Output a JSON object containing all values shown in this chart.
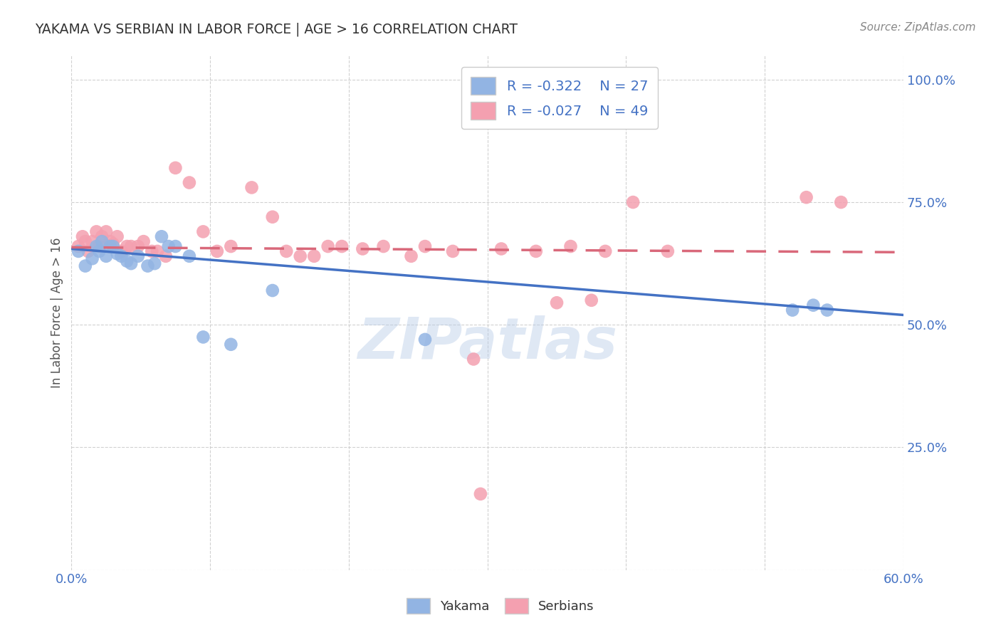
{
  "title": "YAKAMA VS SERBIAN IN LABOR FORCE | AGE > 16 CORRELATION CHART",
  "source": "Source: ZipAtlas.com",
  "ylabel_label": "In Labor Force | Age > 16",
  "x_min": 0.0,
  "x_max": 0.6,
  "y_min": 0.0,
  "y_max": 1.05,
  "x_ticks": [
    0.0,
    0.1,
    0.2,
    0.3,
    0.4,
    0.5,
    0.6
  ],
  "x_tick_labels": [
    "0.0%",
    "",
    "",
    "",
    "",
    "",
    "60.0%"
  ],
  "y_ticks": [
    0.0,
    0.25,
    0.5,
    0.75,
    1.0
  ],
  "y_tick_labels": [
    "",
    "25.0%",
    "50.0%",
    "75.0%",
    "100.0%"
  ],
  "yakama_color": "#92b4e3",
  "serbian_color": "#f4a0b0",
  "yakama_line_color": "#4472c4",
  "serbian_line_color": "#d9687a",
  "background_color": "#ffffff",
  "grid_color": "#cccccc",
  "legend_R_yakama": "R = -0.322",
  "legend_N_yakama": "N = 27",
  "legend_R_serbian": "R = -0.027",
  "legend_N_serbian": "N = 49",
  "watermark": "ZIPatlas",
  "title_color": "#333333",
  "axis_label_color": "#555555",
  "tick_label_color": "#4472c4",
  "source_color": "#888888",
  "yakama_x": [
    0.005,
    0.01,
    0.015,
    0.018,
    0.02,
    0.022,
    0.025,
    0.028,
    0.03,
    0.033,
    0.036,
    0.04,
    0.043,
    0.048,
    0.055,
    0.06,
    0.065,
    0.07,
    0.075,
    0.085,
    0.095,
    0.115,
    0.145,
    0.255,
    0.52,
    0.535,
    0.545
  ],
  "yakama_y": [
    0.65,
    0.62,
    0.635,
    0.66,
    0.65,
    0.67,
    0.64,
    0.66,
    0.66,
    0.645,
    0.64,
    0.63,
    0.625,
    0.64,
    0.62,
    0.625,
    0.68,
    0.66,
    0.66,
    0.64,
    0.475,
    0.46,
    0.57,
    0.47,
    0.53,
    0.54,
    0.53
  ],
  "serbian_x": [
    0.005,
    0.008,
    0.01,
    0.012,
    0.015,
    0.018,
    0.02,
    0.022,
    0.025,
    0.028,
    0.03,
    0.033,
    0.036,
    0.04,
    0.043,
    0.048,
    0.052,
    0.058,
    0.062,
    0.068,
    0.075,
    0.085,
    0.095,
    0.105,
    0.115,
    0.13,
    0.145,
    0.155,
    0.165,
    0.175,
    0.185,
    0.195,
    0.21,
    0.225,
    0.245,
    0.275,
    0.29,
    0.31,
    0.35,
    0.375,
    0.405,
    0.43,
    0.255,
    0.335,
    0.36,
    0.385,
    0.53,
    0.555,
    0.295
  ],
  "serbian_y": [
    0.66,
    0.68,
    0.67,
    0.65,
    0.67,
    0.69,
    0.66,
    0.68,
    0.69,
    0.67,
    0.665,
    0.68,
    0.65,
    0.66,
    0.66,
    0.66,
    0.67,
    0.65,
    0.65,
    0.64,
    0.82,
    0.79,
    0.69,
    0.65,
    0.66,
    0.78,
    0.72,
    0.65,
    0.64,
    0.64,
    0.66,
    0.66,
    0.655,
    0.66,
    0.64,
    0.65,
    0.43,
    0.655,
    0.545,
    0.55,
    0.75,
    0.65,
    0.66,
    0.65,
    0.66,
    0.65,
    0.76,
    0.75,
    0.155
  ]
}
